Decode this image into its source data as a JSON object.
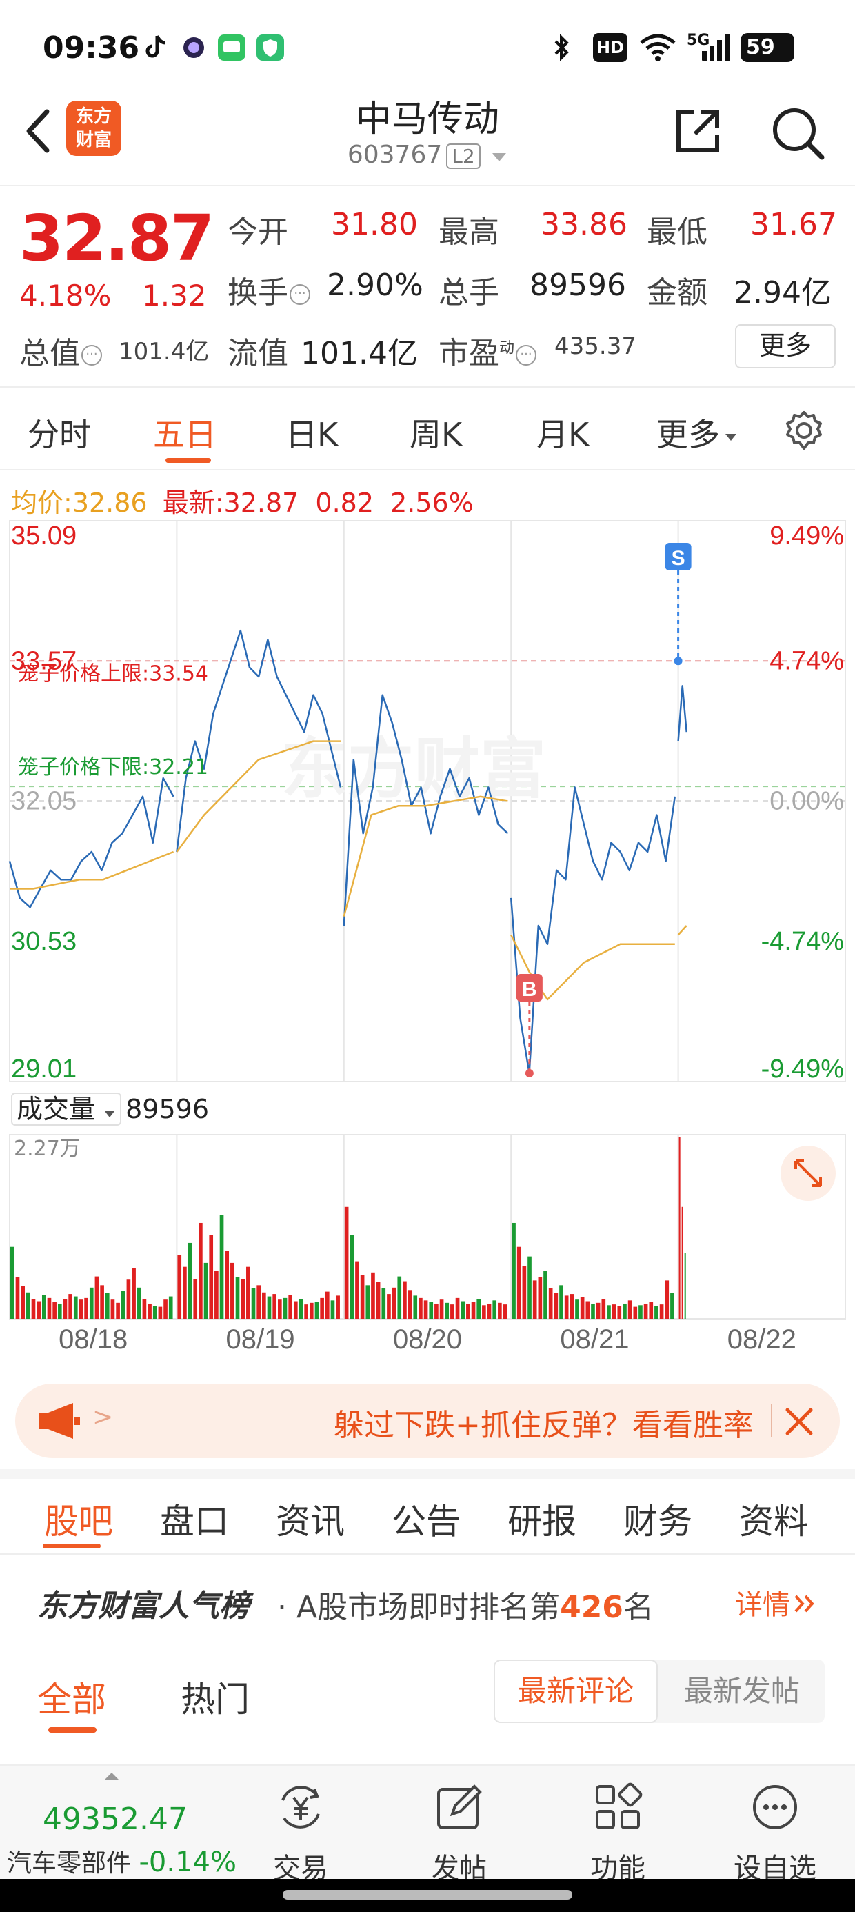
{
  "status_bar": {
    "time": "09:36",
    "battery": "59",
    "network": "5G",
    "hd": "HD"
  },
  "header": {
    "back_icon": "back-chevron-icon",
    "logo_text_line1": "东方",
    "logo_text_line2": "财富",
    "stock_name": "中马传动",
    "stock_code": "603767",
    "level_badge": "L2",
    "share_icon": "share-icon",
    "search_icon": "search-icon"
  },
  "quote": {
    "price": "32.87",
    "change_pct": "4.18%",
    "change": "1.32",
    "open_label": "今开",
    "open": "31.80",
    "high_label": "最高",
    "high": "33.86",
    "low_label": "最低",
    "low": "31.67",
    "turnover_label": "换手",
    "turnover": "2.90%",
    "volume_label": "总手",
    "volume": "89596",
    "amount_label": "金额",
    "amount": "2.94亿",
    "mktcap_label": "总值",
    "mktcap": "101.4亿",
    "float_label": "流值",
    "float": "101.4亿",
    "pe_label": "市盈",
    "pe_sup": "动",
    "pe": "435.37",
    "more_button": "更多",
    "colors": {
      "up": "#e02020",
      "down": "#1a9b33",
      "accent": "#f05a24"
    }
  },
  "chart_tabs": {
    "items": [
      "分时",
      "五日",
      "日K",
      "周K",
      "月K",
      "更多"
    ],
    "active": "五日",
    "settings_icon": "gear-icon"
  },
  "avg_line": {
    "avg_label": "均价:",
    "avg_value": "32.86",
    "latest_label": "最新:",
    "latest_value": "32.87",
    "latest_change": "0.82",
    "latest_pct": "2.56%"
  },
  "chart_data": {
    "type": "line",
    "title": "",
    "x_tick_labels": [
      "08/18",
      "08/19",
      "08/20",
      "08/21",
      "08/22"
    ],
    "y_left_labels": [
      "35.09",
      "33.57",
      "32.05",
      "30.53",
      "29.01"
    ],
    "y_right_labels": [
      "9.49%",
      "4.74%",
      "0.00%",
      "-4.74%",
      "-9.49%"
    ],
    "ylim": [
      29.01,
      35.09
    ],
    "prev_close": 32.05,
    "cage_upper_label": "笼子价格上限:",
    "cage_upper": 33.54,
    "cage_lower_label": "笼子价格下限:",
    "cage_lower": 32.21,
    "markers": [
      {
        "label": "S",
        "day": 4,
        "frac": 0.0,
        "price": 33.57
      },
      {
        "label": "B",
        "day": 3,
        "frac": 0.11,
        "price": 29.1
      }
    ],
    "series": [
      {
        "name": "",
        "days": [
          [
            31.4,
            31.0,
            30.9,
            31.1,
            31.3,
            31.2,
            31.2,
            31.4,
            31.5,
            31.3,
            31.6,
            31.7,
            31.9,
            32.1,
            31.6,
            32.3,
            32.1
          ],
          [
            31.5,
            32.3,
            32.7,
            32.4,
            33.0,
            33.3,
            33.6,
            33.9,
            33.5,
            33.4,
            33.8,
            33.4,
            33.2,
            33.0,
            32.8,
            33.2,
            33.0,
            32.6,
            32.2
          ],
          [
            30.7,
            32.5,
            31.7,
            32.2,
            33.2,
            32.9,
            32.5,
            32.0,
            32.2,
            31.7,
            32.1,
            32.4,
            32.1,
            32.3,
            31.9,
            32.2,
            31.8,
            31.7
          ],
          [
            31.0,
            29.7,
            29.1,
            30.7,
            30.5,
            31.3,
            31.2,
            32.2,
            31.8,
            31.4,
            31.2,
            31.6,
            31.5,
            31.3,
            31.6,
            31.5,
            31.9,
            31.4,
            32.1
          ],
          [
            32.7,
            33.3,
            32.8
          ]
        ]
      },
      {
        "name": "",
        "days": [
          [
            31.1,
            31.1,
            31.15,
            31.2,
            31.2,
            31.3,
            31.4,
            31.5
          ],
          [
            31.5,
            31.9,
            32.2,
            32.5,
            32.6,
            32.7,
            32.7
          ],
          [
            30.8,
            31.9,
            32.0,
            32.0,
            32.05,
            32.1,
            32.05
          ],
          [
            30.6,
            30.2,
            29.9,
            30.1,
            30.3,
            30.4,
            30.5,
            30.5,
            30.5,
            30.5
          ],
          [
            30.6,
            30.7
          ]
        ]
      }
    ],
    "volume": {
      "label": "成交量",
      "value": "89596",
      "ymax_label": "2.27万",
      "ymax": 22700,
      "days": [
        [
          9000,
          5200,
          4100,
          3300,
          2500,
          2200,
          3000,
          2600,
          2100,
          1900,
          2500,
          3100,
          2800,
          2400,
          2600,
          3900,
          5300,
          4200,
          3200,
          2400,
          2000,
          3500,
          4900,
          6300,
          3900,
          2500,
          1900,
          1600,
          1500,
          2400,
          2800
        ],
        [
          8000,
          6500,
          9500,
          5000,
          12000,
          7000,
          10500,
          6000,
          13000,
          8500,
          7000,
          5200,
          5000,
          6500,
          3800,
          4200,
          3300,
          2800,
          3100,
          2400,
          2600,
          3000,
          2200,
          2500,
          1800,
          2000,
          2100,
          2600,
          3400,
          2300,
          2900
        ],
        [
          14000,
          10500,
          7200,
          5500,
          4200,
          5800,
          4600,
          3800,
          3100,
          3900,
          5300,
          4700,
          3600,
          2900,
          2600,
          2300,
          2100,
          1900,
          2400,
          2000,
          1800,
          2600,
          2200,
          1900,
          2100,
          2500,
          1700,
          1900,
          2300,
          2000,
          1800
        ],
        [
          12000,
          9000,
          6600,
          7800,
          4800,
          5200,
          6000,
          3800,
          3200,
          4200,
          2900,
          3100,
          2400,
          2700,
          2200,
          1900,
          2000,
          2500,
          1700,
          1800,
          1600,
          1900,
          2300,
          1500,
          1700,
          1900,
          2100,
          1600,
          1800,
          4800,
          3200
        ],
        [
          22700,
          14000,
          8200
        ]
      ]
    },
    "expand_icon": "expand-icon"
  },
  "banner": {
    "megaphone_icon": "megaphone-icon",
    "arrow": ">",
    "text": "躲过下跌+抓住反弹？看看胜率",
    "close_icon": "close-icon"
  },
  "section_tabs": {
    "items": [
      "股吧",
      "盘口",
      "资讯",
      "公告",
      "研报",
      "财务",
      "资料"
    ],
    "active": "股吧"
  },
  "rank": {
    "title": "东方财富人气榜",
    "prefix": "· A股市场即时排名第",
    "number": "426",
    "suffix": "名",
    "detail": "详情"
  },
  "feed_tabs": {
    "items": [
      "全部",
      "热门"
    ],
    "active": "全部",
    "sort_latest_comment": "最新评论",
    "sort_latest_post": "最新发帖"
  },
  "bottom_bar": {
    "index_value": "49352.47",
    "sector_name": "汽车零部件",
    "sector_change": "-0.14%",
    "items": [
      {
        "label": "交易",
        "icon": "yen-trade-icon"
      },
      {
        "label": "发帖",
        "icon": "edit-icon"
      },
      {
        "label": "功能",
        "icon": "grid-icon"
      },
      {
        "label": "设自选",
        "icon": "more-dots-icon"
      }
    ]
  }
}
